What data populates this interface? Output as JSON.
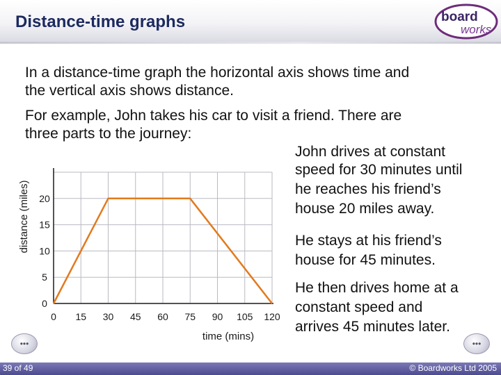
{
  "header": {
    "title": "Distance-time graphs",
    "logo_line1": "board",
    "logo_line2": "works"
  },
  "intro": {
    "line1": "In a distance-time graph the horizontal axis shows time and",
    "line2": "the vertical axis shows distance.",
    "line3": "For example, John takes his car to visit a friend. There are",
    "line4": "three parts to the journey:"
  },
  "notes": [
    {
      "line1": "John drives at constant",
      "line2": "speed for 30 minutes until",
      "line3": "he reaches his friend’s",
      "line4": "house 20 miles away."
    },
    {
      "line1": "He stays at his friend’s",
      "line2": "house for 45 minutes."
    },
    {
      "line1": "He then drives home at a",
      "line2": "constant speed and",
      "line3": "arrives 45 minutes later."
    }
  ],
  "chart_data": {
    "type": "line",
    "title": "",
    "xlabel": "time (mins)",
    "ylabel": "distance (miles)",
    "x_ticks": [
      0,
      15,
      30,
      45,
      60,
      75,
      90,
      105,
      120
    ],
    "y_ticks": [
      0,
      5,
      10,
      15,
      20
    ],
    "xlim": [
      0,
      120
    ],
    "ylim": [
      0,
      25
    ],
    "grid": true,
    "series": [
      {
        "x": [
          0,
          30,
          75,
          120
        ],
        "y": [
          0,
          20,
          20,
          0
        ]
      }
    ],
    "colors": {
      "line": "#e27a1e",
      "grid": "#b9b9c2",
      "axis": "#1a1a1a"
    }
  },
  "footer": {
    "page_counter": "39 of 49",
    "copyright": "© Boardworks Ltd 2005"
  },
  "nav": {
    "prev_icon": "ellipsis-left-icon",
    "next_icon": "ellipsis-right-icon"
  }
}
